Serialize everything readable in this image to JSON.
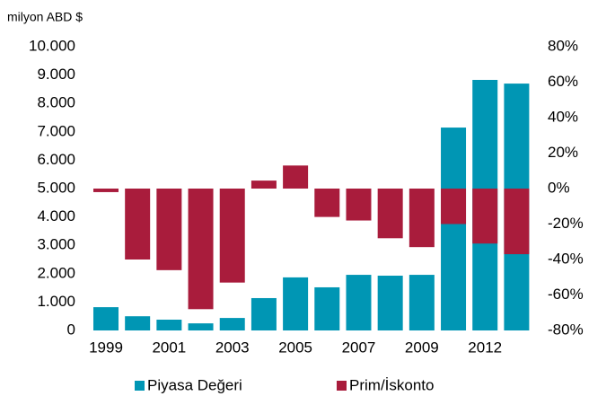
{
  "chart_data": {
    "type": "bar",
    "y_label": "milyon ABD $",
    "categories": [
      "1999",
      null,
      "2001",
      null,
      "2003",
      null,
      "2005",
      null,
      "2007",
      null,
      "2009",
      null,
      "2012",
      null
    ],
    "series": [
      {
        "name": "Piyasa Değeri",
        "color": "#0096b4",
        "values": [
          820,
          500,
          380,
          250,
          440,
          1140,
          1870,
          1520,
          1960,
          1930,
          1960,
          7150,
          8830,
          8700
        ]
      },
      {
        "name": "Prim/İskonto",
        "color": "#a91c3c",
        "axis": "y2",
        "values": [
          -2,
          -40,
          -46,
          -68,
          -53,
          4.5,
          13,
          -16,
          -18,
          -28,
          -33,
          -20,
          -31,
          -37
        ]
      }
    ],
    "ylim": [
      0,
      10000
    ],
    "yticks": [
      0,
      {
        "value": 1000,
        "label": "1.000"
      },
      {
        "value": 2000,
        "label": "2.000"
      },
      {
        "value": 3000,
        "label": "3.000"
      },
      {
        "value": 4000,
        "label": "4.000"
      },
      {
        "value": 5000,
        "label": "5.000"
      },
      {
        "value": 6000,
        "label": "6.000"
      },
      {
        "value": 7000,
        "label": "7.000"
      },
      {
        "value": 8000,
        "label": "8.000"
      },
      {
        "value": 9000,
        "label": "9.000"
      },
      {
        "value": 10000,
        "label": "10.000"
      }
    ],
    "y2lim": [
      -80,
      80
    ],
    "y2ticks": [
      {
        "value": -80,
        "label": "-80%"
      },
      {
        "value": -60,
        "label": "-60%"
      },
      {
        "value": -40,
        "label": "-40%"
      },
      {
        "value": -20,
        "label": "-20%"
      },
      {
        "value": 0,
        "label": "0%"
      },
      {
        "value": 20,
        "label": "20%"
      },
      {
        "value": 40,
        "label": "40%"
      },
      {
        "value": 60,
        "label": "60%"
      },
      {
        "value": 80,
        "label": "80%"
      }
    ],
    "legend": "bottom"
  }
}
